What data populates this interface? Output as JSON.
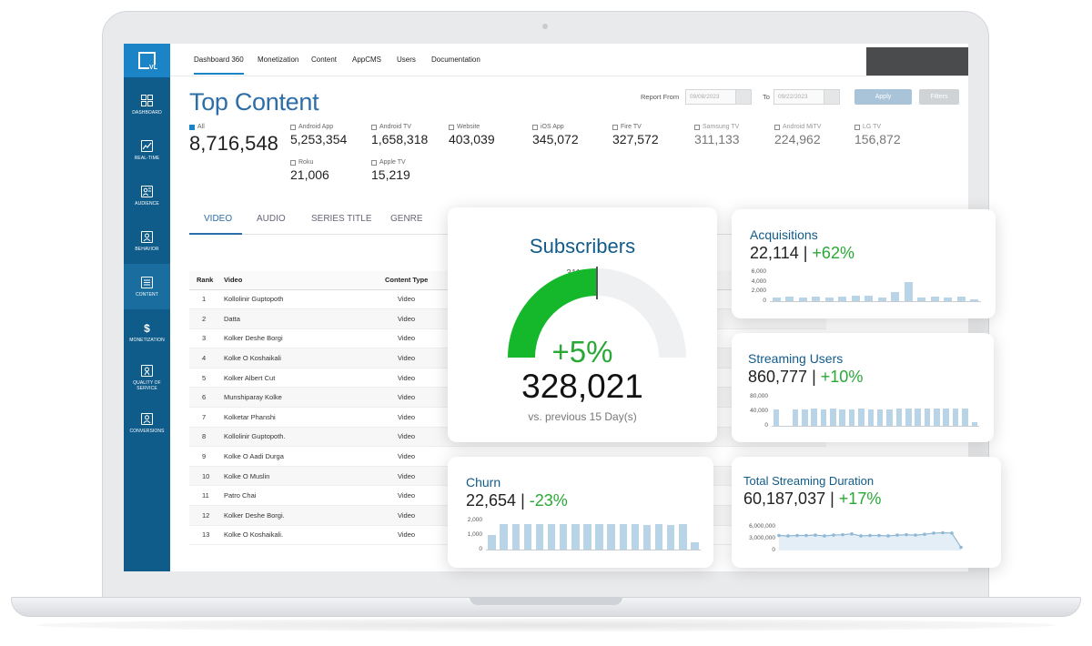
{
  "topnav": {
    "items": [
      "Dashboard 360",
      "Monetization",
      "Content",
      "AppCMS",
      "Users",
      "Documentation"
    ]
  },
  "sidebar": {
    "items": [
      {
        "label": "DASHBOARD",
        "icon": "grid-icon"
      },
      {
        "label": "REAL-TIME",
        "icon": "line-chart-icon"
      },
      {
        "label": "AUDIENCE",
        "icon": "audience-icon"
      },
      {
        "label": "BEHAVIOR",
        "icon": "behavior-icon"
      },
      {
        "label": "CONTENT",
        "icon": "document-icon"
      },
      {
        "label": "MONETIZATION",
        "icon": "dollar-icon"
      },
      {
        "label": "QUALITY OF SERVICE",
        "icon": "quality-icon"
      },
      {
        "label": "CONVERSIONS",
        "icon": "person-icon"
      }
    ]
  },
  "page": {
    "title": "Top Content",
    "report_from_label": "Report From",
    "from_date": "09/08/2023",
    "to_label": "To",
    "to_date": "09/22/2023",
    "apply_label": "Apply",
    "filters_label": "Filters"
  },
  "platforms": [
    {
      "label": "All",
      "value": "8,716,548",
      "checked": true
    },
    {
      "label": "Android App",
      "value": "5,253,354",
      "checked": false
    },
    {
      "label": "Android TV",
      "value": "1,658,318",
      "checked": false
    },
    {
      "label": "Website",
      "value": "403,039",
      "checked": false
    },
    {
      "label": "iOS App",
      "value": "345,072",
      "checked": false
    },
    {
      "label": "Fire TV",
      "value": "327,572",
      "checked": false
    },
    {
      "label": "Samsung TV",
      "value": "311,133",
      "checked": false
    },
    {
      "label": "Android MiTV",
      "value": "224,962",
      "checked": false
    },
    {
      "label": "LG TV",
      "value": "156,872",
      "checked": false
    },
    {
      "label": "Roku",
      "value": "21,006",
      "checked": false
    },
    {
      "label": "Apple TV",
      "value": "15,219",
      "checked": false
    }
  ],
  "content_tabs": [
    "VIDEO",
    "AUDIO",
    "SERIES TITLE",
    "GENRE"
  ],
  "table": {
    "headers": [
      "Rank",
      "Video",
      "Content Type"
    ],
    "rows": [
      [
        "1",
        "Kollolinir Guptopoth",
        "Video"
      ],
      [
        "2",
        "Datta",
        "Video"
      ],
      [
        "3",
        "Kolker Deshe Borgi",
        "Video"
      ],
      [
        "4",
        "Kolke O Koshaikali",
        "Video"
      ],
      [
        "5",
        "Kolker Albert Cut",
        "Video"
      ],
      [
        "6",
        "Munshiparay Kolke",
        "Video"
      ],
      [
        "7",
        "Kolketar Phanshi",
        "Video"
      ],
      [
        "8",
        "Kollolinir Guptopoth.",
        "Video"
      ],
      [
        "9",
        "Kolke O Aadi Durga",
        "Video"
      ],
      [
        "10",
        "Kolke O Muslin",
        "Video"
      ],
      [
        "11",
        "Patro Chai",
        "Video"
      ],
      [
        "12",
        "Kolker Deshe Borgi.",
        "Video"
      ],
      [
        "13",
        "Kolke O Koshaikali.",
        "Video"
      ]
    ]
  },
  "cards": {
    "subscribers": {
      "title": "Subscribers",
      "previous": "311,489",
      "pct": "+5%",
      "value": "328,021",
      "note": "vs. previous 15 Day(s)",
      "gauge_fraction": 0.5,
      "gauge_color": "#16b82b"
    },
    "acquisitions": {
      "title": "Acquisitions",
      "value": "22,114",
      "pct": "+62%",
      "yticks": [
        "6,000",
        "4,000",
        "2,000",
        "0"
      ],
      "ymax": 6000,
      "bars": [
        700,
        1000,
        800,
        900,
        800,
        900,
        1100,
        1200,
        700,
        1800,
        3900,
        700,
        900,
        800,
        900,
        300
      ]
    },
    "streaming_users": {
      "title": "Streaming Users",
      "value": "860,777",
      "pct": "+10%",
      "yticks": [
        "80,000",
        "40,000",
        "0"
      ],
      "ymax": 80000,
      "bars": [
        46000,
        0,
        46000,
        45000,
        47000,
        46000,
        47000,
        46000,
        45000,
        47000,
        46000,
        46000,
        45000,
        48000,
        47000,
        47000,
        48000,
        48000,
        47000,
        48000,
        47000,
        9000
      ]
    },
    "churn": {
      "title": "Churn",
      "value": "22,654",
      "pct": "-23%",
      "yticks": [
        "2,000",
        "1,000",
        "0"
      ],
      "ymax": 2000,
      "bars": [
        1000,
        1780,
        1720,
        1740,
        1720,
        1760,
        1730,
        1770,
        1760,
        1740,
        1780,
        1740,
        1720,
        1700,
        1740,
        1700,
        1730,
        500
      ]
    },
    "total_streaming": {
      "title": "Total Streaming Duration",
      "value": "60,187,037",
      "pct": "+17%",
      "yticks": [
        "6,000,000",
        "3,000,000",
        "0"
      ],
      "ymax": 6000000,
      "points": [
        3800000,
        3700000,
        3800000,
        3800000,
        3900000,
        3700000,
        3900000,
        4000000,
        4200000,
        3700000,
        3800000,
        3800000,
        3700000,
        3900000,
        4000000,
        3900000,
        4100000,
        4400000,
        4500000,
        4400000,
        800000
      ]
    }
  }
}
